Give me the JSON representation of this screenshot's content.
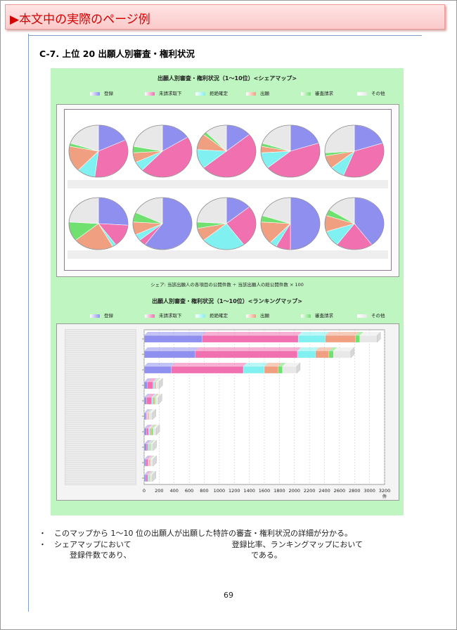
{
  "banner": {
    "text": "▶本文中の実際のページ例"
  },
  "section": {
    "title": "C-7.  上位 20 出願人別審査・権利状況"
  },
  "share_chart": {
    "title": "出願人別審査・権利状況（1～10位）<シェアマップ>",
    "note": "シェア: 当該出願人の各項目の公開件数 ÷ 当該出願人の総公開件数 × 100"
  },
  "ranking_chart": {
    "title": "出願人別審査・権利状況（1～10位）<ランキングマップ>",
    "x_unit": "件"
  },
  "legend": [
    {
      "label": "登録",
      "color": "#8f8ff0"
    },
    {
      "label": "未請求取下",
      "color": "#f070b0"
    },
    {
      "label": "拒絶確定",
      "color": "#80f0f0"
    },
    {
      "label": "出願",
      "color": "#f0a080"
    },
    {
      "label": "審査請求",
      "color": "#70e070"
    },
    {
      "label": "その他",
      "color": "#e8e8e8"
    }
  ],
  "bullets": [
    "・　このマップから 1～10 位の出願人が出願した特許の審査・権利状況の詳細が分かる。",
    "・　シェアマップにおいて　　　　　　　　　　　　　登録比率、ランキングマップにおいて",
    "　　　　登録件数であり、　　　　　　　　　　　　　　　　である。"
  ],
  "page_number": "69",
  "chart_data": [
    {
      "type": "pie",
      "title": "出願人別審査・権利状況（1～10位）<シェアマップ>",
      "categories": [
        "登録",
        "未請求取下",
        "拒絶確定",
        "出願",
        "審査請求",
        "その他"
      ],
      "series": [
        {
          "values": [
            18,
            34,
            10,
            16,
            2,
            20
          ]
        },
        {
          "values": [
            16,
            46,
            6,
            6,
            4,
            22
          ]
        },
        {
          "values": [
            14,
            50,
            12,
            10,
            2,
            12
          ]
        },
        {
          "values": [
            20,
            44,
            10,
            4,
            2,
            20
          ]
        },
        {
          "values": [
            20,
            36,
            8,
            8,
            2,
            26
          ]
        },
        {
          "values": [
            26,
            14,
            2,
            22,
            12,
            24
          ]
        },
        {
          "values": [
            60,
            4,
            4,
            8,
            6,
            18
          ]
        },
        {
          "values": [
            14,
            26,
            24,
            8,
            4,
            24
          ]
        },
        {
          "values": [
            50,
            8,
            4,
            14,
            4,
            20
          ]
        },
        {
          "values": [
            40,
            20,
            10,
            10,
            4,
            16
          ]
        }
      ]
    },
    {
      "type": "bar",
      "title": "出願人別審査・権利状況（1～10位）<ランキングマップ>",
      "categories": [
        "1",
        "2",
        "3",
        "4",
        "5",
        "6",
        "7",
        "8",
        "9",
        "10"
      ],
      "series": [
        {
          "name": "登録",
          "values": [
            770,
            680,
            360,
            40,
            30,
            25,
            30,
            30,
            25,
            20
          ]
        },
        {
          "name": "未請求取下",
          "values": [
            1280,
            1360,
            960,
            80,
            70,
            10,
            30,
            20,
            30,
            30
          ]
        },
        {
          "name": "拒絶確定",
          "values": [
            360,
            240,
            280,
            20,
            20,
            10,
            20,
            20,
            10,
            10
          ]
        },
        {
          "name": "出願",
          "values": [
            400,
            180,
            180,
            10,
            20,
            10,
            20,
            10,
            10,
            10
          ]
        },
        {
          "name": "審査請求",
          "values": [
            60,
            60,
            60,
            10,
            10,
            10,
            20,
            10,
            10,
            10
          ]
        },
        {
          "name": "その他",
          "values": [
            230,
            230,
            190,
            40,
            40,
            45,
            40,
            30,
            35,
            30
          ]
        }
      ],
      "x_ticks": [
        "0",
        "200",
        "400",
        "600",
        "800",
        "1000",
        "1200",
        "1400",
        "1600",
        "1800",
        "2000",
        "2200",
        "2400",
        "2600",
        "2800",
        "3000",
        "3200"
      ],
      "xlim": [
        0,
        3200
      ],
      "xlabel": "件",
      "grid": true
    }
  ]
}
